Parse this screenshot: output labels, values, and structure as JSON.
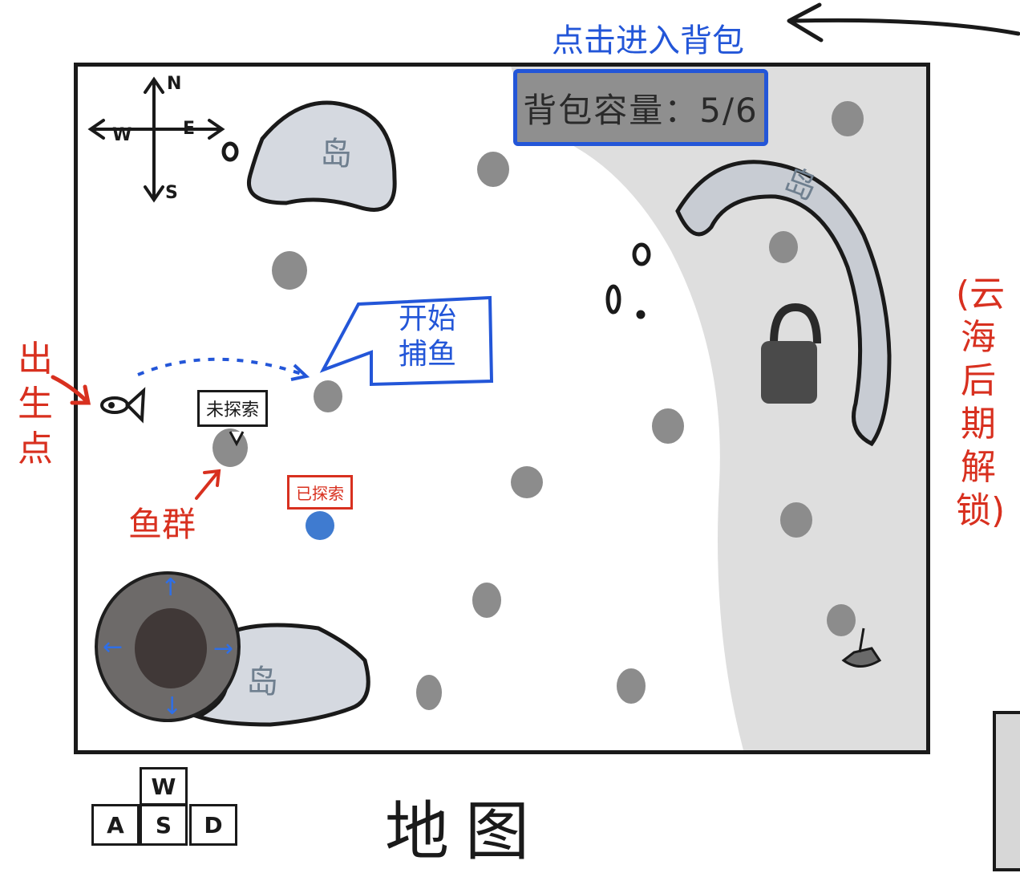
{
  "backpack": {
    "hint": "点击进入背包",
    "capacity_label": "背包容量：5/6"
  },
  "compass": {
    "n": "N",
    "s": "S",
    "w": "W",
    "e": "E"
  },
  "islands": {
    "label_top": "岛",
    "label_bottom": "岛",
    "label_right": "岛"
  },
  "spawn": {
    "label": "出生点"
  },
  "fish_school": {
    "label": "鱼群"
  },
  "tags": {
    "unexplored": "未探索",
    "explored": "已探索"
  },
  "fishing": {
    "line1": "开始",
    "line2": "捕鱼"
  },
  "unlock_note": "(云海后期解锁)",
  "keys": {
    "w": "W",
    "a": "A",
    "s": "S",
    "d": "D"
  },
  "map_title": "地图",
  "colors": {
    "frame": "#1a1a1a",
    "island_fill": "#d5d9e0",
    "cloud_sea": "#dedede",
    "fish_spot": "#8c8c8c",
    "explored_spot": "#3f7bd0",
    "note_blue": "#2356d8",
    "note_red": "#d8301f"
  },
  "icons": [
    "compass-icon",
    "lock-icon",
    "boat-icon",
    "fish-icon",
    "arrow-icon"
  ]
}
